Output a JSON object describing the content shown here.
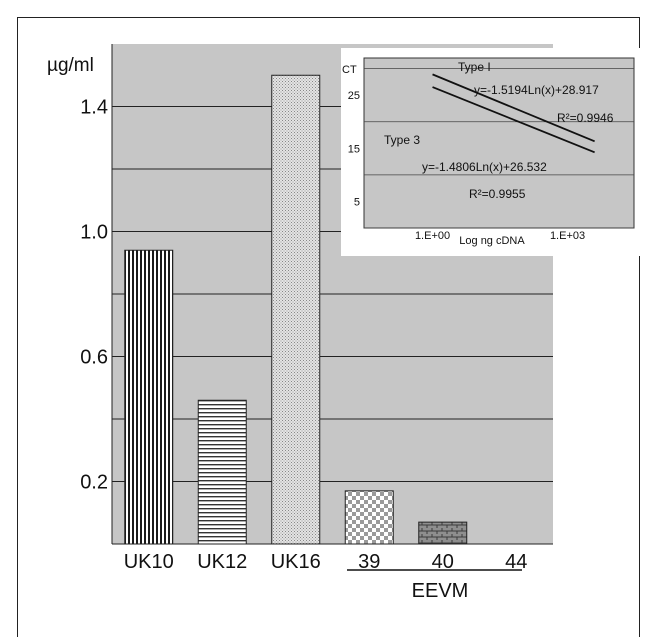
{
  "chart_data": [
    {
      "type": "bar",
      "ylabel": "µg/ml",
      "yticks": [
        0.2,
        0.6,
        1.0,
        1.4
      ],
      "ytick_labels": [
        "0.2",
        "0.6",
        "1.0",
        "1.4"
      ],
      "ylim": [
        0,
        1.6
      ],
      "grid": true,
      "categories": [
        "UK10",
        "UK12",
        "UK16",
        "39",
        "40",
        "44"
      ],
      "values": [
        0.94,
        0.46,
        1.5,
        0.17,
        0.07,
        0.0
      ],
      "patterns": [
        "vertical-lines",
        "horizontal-lines",
        "fine-dots",
        "checker",
        "brick",
        "none"
      ],
      "group_label": "EEVM",
      "group_members": [
        "39",
        "40",
        "44"
      ],
      "plot_bg": "#c6c6c6"
    },
    {
      "type": "line",
      "ylabel": "CT",
      "xlabel": "Log ng cDNA",
      "x_scale": "log",
      "xticks": [
        1,
        1000
      ],
      "xtick_labels": [
        "1.E+00",
        "1.E+03"
      ],
      "yticks": [
        5,
        15,
        25
      ],
      "ytick_labels": [
        "5",
        "15",
        "25"
      ],
      "ylim": [
        0,
        32
      ],
      "series": [
        {
          "name": "Type I",
          "equation": "y=-1.5194Ln(x)+28.917",
          "r2": "R²=0.9946",
          "x": [
            1,
            4000
          ],
          "y": [
            28.917,
            16.31
          ]
        },
        {
          "name": "Type 3",
          "equation": "y=-1.4806Ln(x)+26.532",
          "r2": "R²=0.9955",
          "x": [
            1,
            4000
          ],
          "y": [
            26.532,
            14.25
          ]
        }
      ]
    }
  ]
}
